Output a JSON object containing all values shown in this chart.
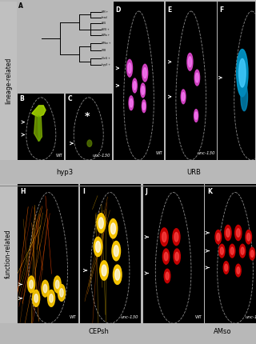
{
  "fig_bg": "#b8b8b8",
  "label_bg": "#c0c0c0",
  "panel_bg": "#000000",
  "left_label_top": "lineage-related",
  "left_label_bottom": "function-related",
  "mid_labels": [
    "hyp3",
    "URB"
  ],
  "bot_labels": [
    "CEPsh",
    "AMso"
  ],
  "tree_labels": [
    "AM +",
    "head",
    "AVG",
    "AVG +",
    "AWa +",
    "AMso +",
    "URB",
    "UleG +",
    "hyp3 +"
  ],
  "worm_outline_color": "#999999",
  "arrow_color": "#ffffff",
  "text_color": "#ffffff"
}
